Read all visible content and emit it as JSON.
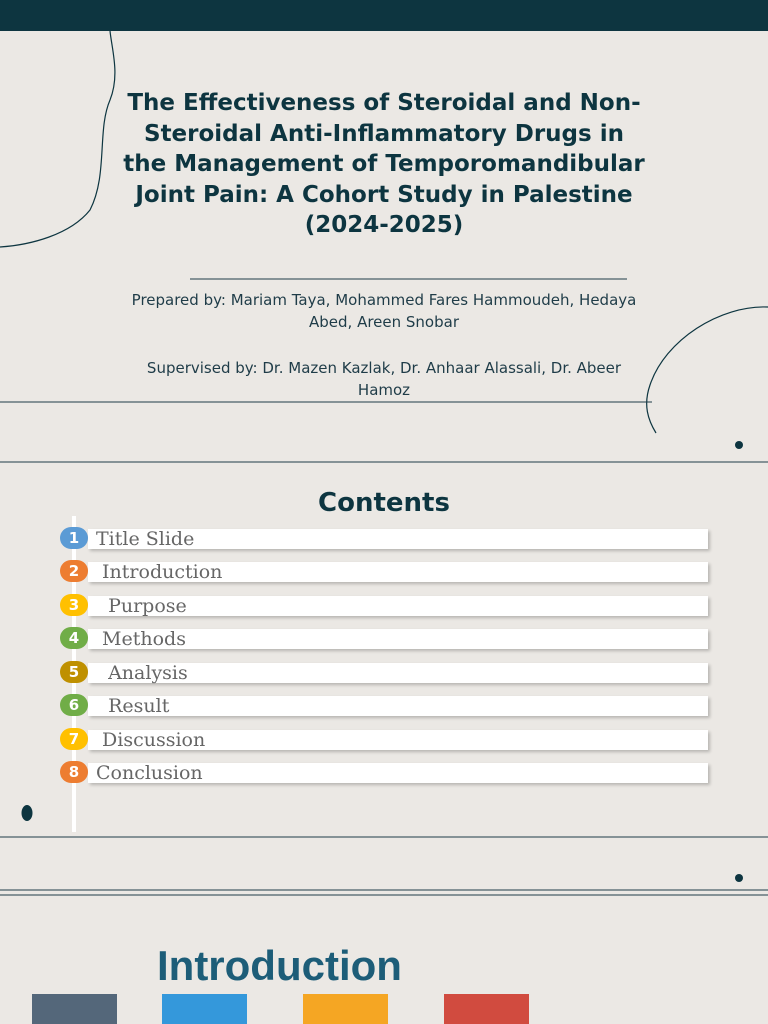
{
  "slide1": {
    "title": "The Effectiveness of Steroidal and Non-Steroidal Anti-Inflammatory Drugs in the Management of Temporomandibular Joint Pain: A Cohort Study in Palestine (2024-2025)",
    "prepared_by": "Prepared by: Mariam Taya,  Mohammed Fares Hammoudeh, Hedaya Abed, Areen Snobar",
    "supervised_by": "Supervised by: Dr. Mazen Kazlak, Dr. Anhaar Alassali, Dr. Abeer Hamoz"
  },
  "slide2": {
    "title": "Contents",
    "items": [
      {
        "number": "1",
        "label": "Title Slide",
        "color": "#5b9bd5"
      },
      {
        "number": "2",
        "label": " Introduction",
        "color": "#ed7d31"
      },
      {
        "number": "3",
        "label": "  Purpose",
        "color": "#ffc000"
      },
      {
        "number": "4",
        "label": " Methods",
        "color": "#70ad47"
      },
      {
        "number": "5",
        "label": "  Analysis",
        "color": "#bf9000"
      },
      {
        "number": "6",
        "label": "  Result",
        "color": "#70ad47"
      },
      {
        "number": "7",
        "label": " Discussion",
        "color": "#ffc000"
      },
      {
        "number": "8",
        "label": "Conclusion",
        "color": "#ed7d31"
      }
    ]
  },
  "slide3": {
    "title": "Introduction",
    "boxes": [
      {
        "color": "#54677a"
      },
      {
        "color": "#3498db"
      },
      {
        "color": "#f5a623"
      },
      {
        "color": "#d14b3f"
      }
    ]
  },
  "colors": {
    "dark_teal": "#0d3540",
    "background": "#ebe8e4",
    "intro_title": "#1d5d78"
  }
}
